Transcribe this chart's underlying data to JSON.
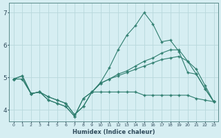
{
  "xlabel": "Humidex (Indice chaleur)",
  "xlim": [
    -0.5,
    23.5
  ],
  "ylim": [
    3.65,
    7.3
  ],
  "yticks": [
    4,
    5,
    6,
    7
  ],
  "xticks": [
    0,
    1,
    2,
    3,
    4,
    5,
    6,
    7,
    8,
    9,
    10,
    11,
    12,
    13,
    14,
    15,
    16,
    17,
    18,
    19,
    20,
    21,
    22,
    23
  ],
  "bg_color": "#d6eef2",
  "grid_color": "#b8d8dc",
  "line_color": "#2e7d6e",
  "line1_x": [
    0,
    1,
    2,
    3,
    4,
    5,
    6,
    7,
    8,
    9,
    10,
    11,
    12,
    13,
    14,
    15,
    16,
    17,
    18,
    19,
    20,
    21,
    22,
    23
  ],
  "line1_y": [
    4.95,
    5.05,
    4.5,
    4.55,
    4.3,
    4.2,
    4.1,
    3.8,
    4.35,
    4.55,
    4.55,
    4.55,
    4.55,
    4.55,
    4.55,
    4.45,
    4.45,
    4.45,
    4.45,
    4.45,
    4.45,
    4.35,
    4.3,
    4.25
  ],
  "line2_x": [
    0,
    1,
    2,
    3,
    4,
    5,
    6,
    7,
    8,
    9,
    10,
    11,
    12,
    13,
    14,
    15,
    16,
    17,
    18,
    19,
    20,
    21,
    22,
    23
  ],
  "line2_y": [
    4.95,
    5.05,
    4.5,
    4.55,
    4.3,
    4.2,
    4.1,
    3.8,
    4.35,
    4.55,
    4.85,
    5.3,
    5.85,
    6.3,
    6.6,
    7.0,
    6.65,
    6.1,
    6.15,
    5.8,
    5.15,
    5.1,
    4.65,
    4.25
  ],
  "line3_x": [
    0,
    1,
    2,
    3,
    4,
    5,
    6,
    7,
    8,
    9,
    10,
    11,
    12,
    13,
    14,
    15,
    16,
    17,
    18,
    19,
    20,
    21,
    22,
    23
  ],
  "line3_y": [
    4.95,
    4.95,
    4.5,
    4.55,
    4.4,
    4.3,
    4.2,
    3.85,
    4.1,
    4.55,
    4.82,
    4.95,
    5.1,
    5.2,
    5.35,
    5.5,
    5.6,
    5.75,
    5.85,
    5.85,
    5.5,
    5.25,
    4.75,
    4.25
  ],
  "line4_x": [
    0,
    1,
    2,
    3,
    4,
    5,
    6,
    7,
    8,
    9,
    10,
    11,
    12,
    13,
    14,
    15,
    16,
    17,
    18,
    19,
    20,
    21,
    22,
    23
  ],
  "line4_y": [
    4.95,
    4.95,
    4.5,
    4.55,
    4.4,
    4.3,
    4.2,
    3.85,
    4.1,
    4.55,
    4.82,
    4.95,
    5.05,
    5.15,
    5.25,
    5.35,
    5.45,
    5.55,
    5.6,
    5.65,
    5.5,
    5.1,
    4.65,
    4.25
  ]
}
